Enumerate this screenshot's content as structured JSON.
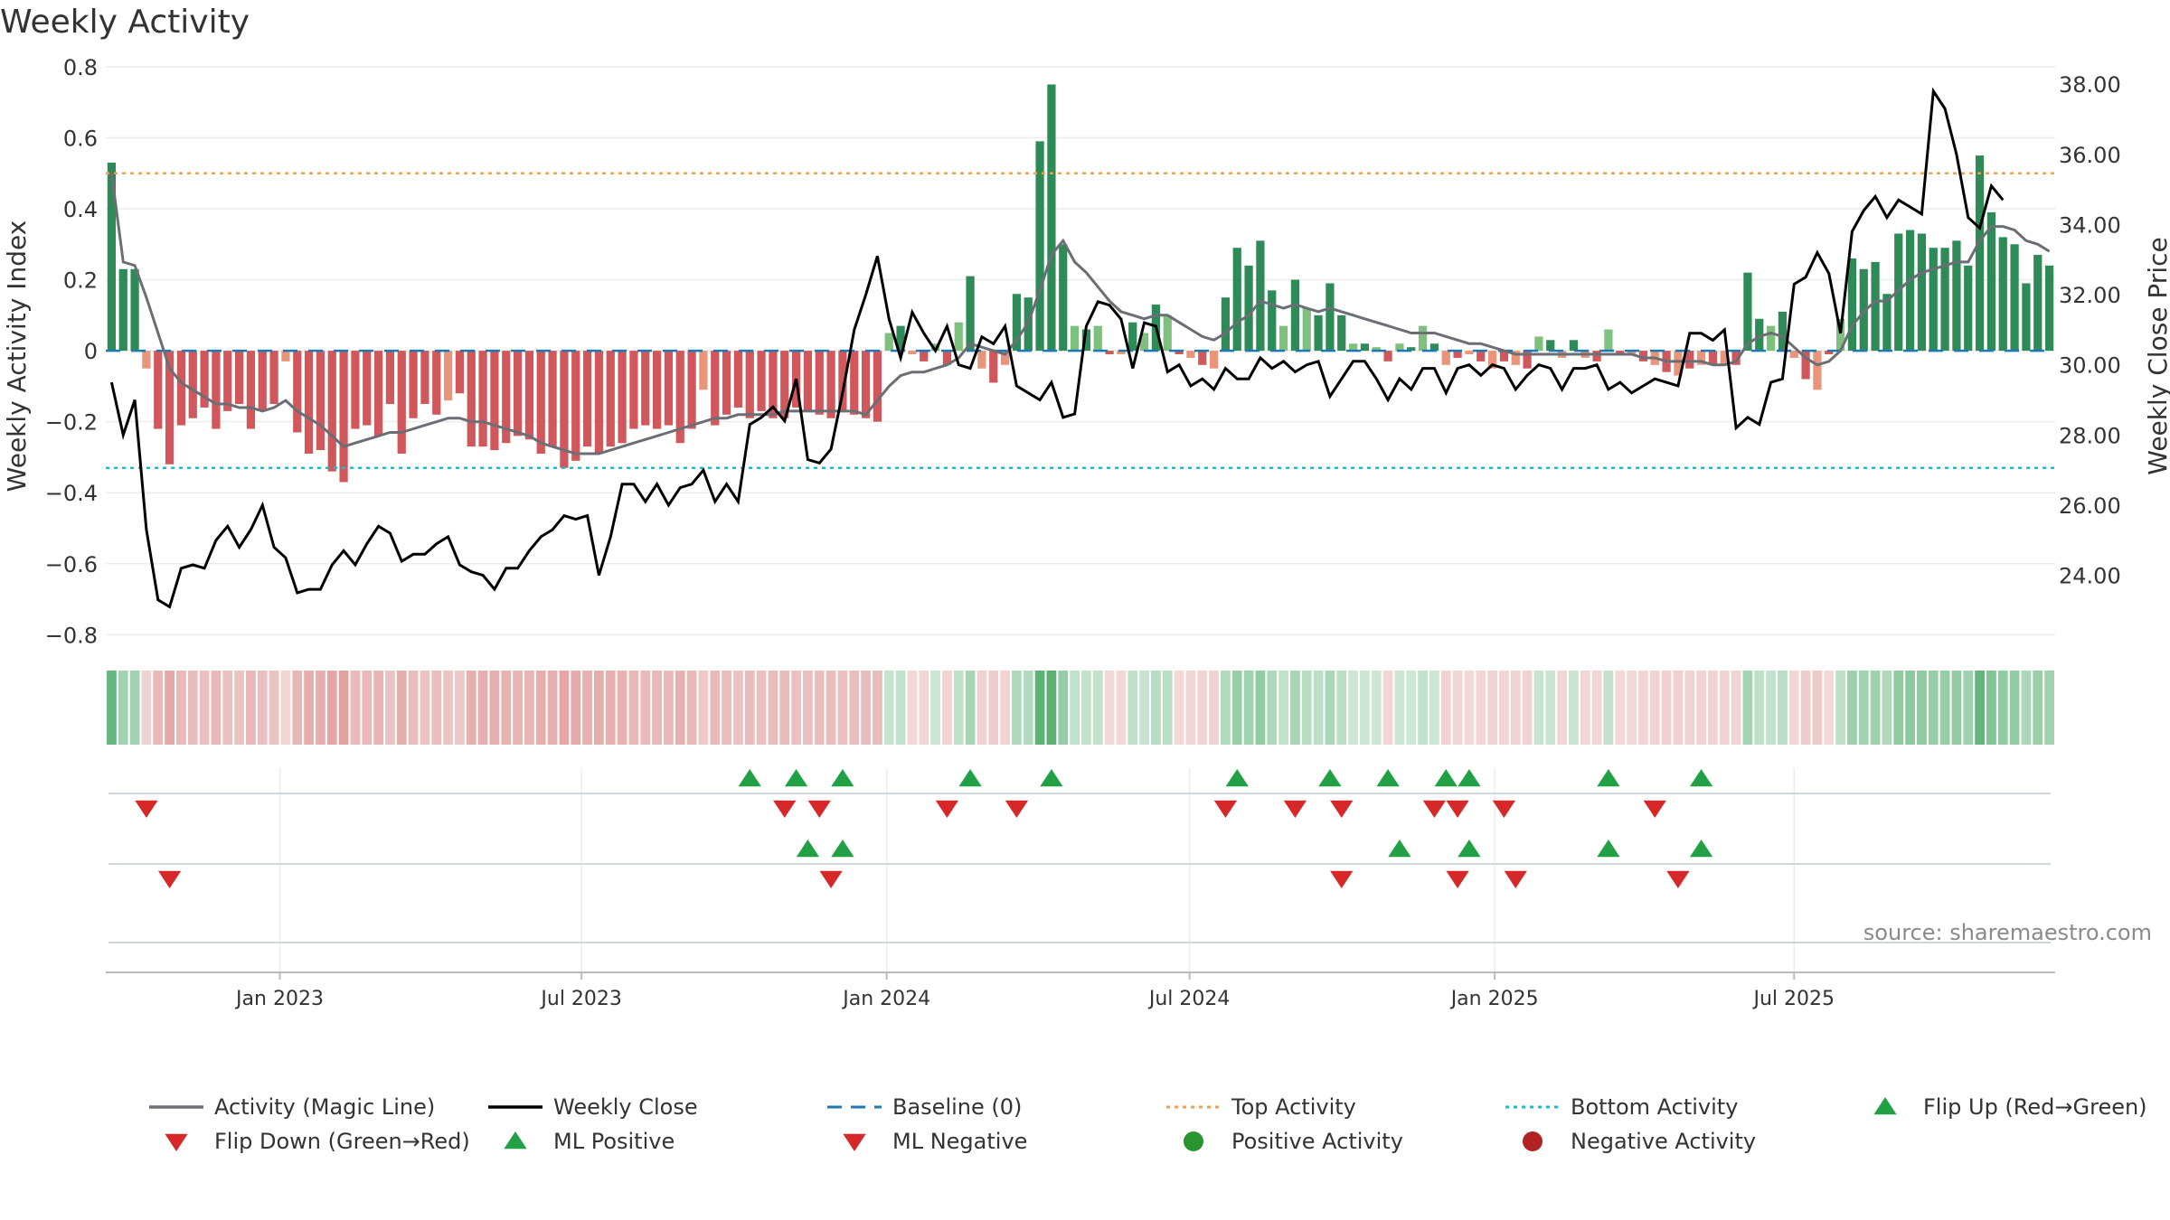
{
  "chart_data": {
    "type": "bar",
    "title": "Weekly Activity",
    "ylabel": "Weekly Activity Index",
    "y2label": "Weekly Close Price",
    "ylim": [
      -0.85,
      0.82
    ],
    "y2lim": [
      21.8,
      38.7
    ],
    "y_ticks": [
      0.8,
      0.6,
      0.4,
      0.2,
      0,
      -0.2,
      -0.4,
      -0.6,
      -0.8
    ],
    "y_tick_labels": [
      "0.8",
      "0.6",
      "0.4",
      "0.2",
      "0",
      "−0.2",
      "−0.4",
      "−0.6",
      "−0.8"
    ],
    "y2_ticks": [
      38,
      36,
      34,
      32,
      30,
      28,
      26,
      24
    ],
    "y2_tick_labels": [
      "38.00",
      "36.00",
      "34.00",
      "32.00",
      "30.00",
      "28.00",
      "26.00",
      "24.00"
    ],
    "x_ticks": [
      {
        "label": "Jan 2023",
        "week": 15
      },
      {
        "label": "Jul 2023",
        "week": 41
      },
      {
        "label": "Jan 2024",
        "week": 67.3
      },
      {
        "label": "Jul 2024",
        "week": 93.4
      },
      {
        "label": "Jan 2025",
        "week": 119.7
      },
      {
        "label": "Jul 2025",
        "week": 145.5
      }
    ],
    "top_activity": 0.5,
    "bottom_activity": -0.33,
    "baseline": 0,
    "activity": [
      0.53,
      0.23,
      0.23,
      -0.05,
      -0.22,
      -0.32,
      -0.21,
      -0.19,
      -0.16,
      -0.22,
      -0.17,
      -0.15,
      -0.22,
      -0.17,
      -0.15,
      -0.03,
      -0.23,
      -0.29,
      -0.28,
      -0.34,
      -0.37,
      -0.22,
      -0.21,
      -0.24,
      -0.15,
      -0.29,
      -0.19,
      -0.15,
      -0.18,
      -0.14,
      -0.12,
      -0.27,
      -0.27,
      -0.28,
      -0.26,
      -0.24,
      -0.25,
      -0.29,
      -0.27,
      -0.33,
      -0.31,
      -0.27,
      -0.29,
      -0.27,
      -0.26,
      -0.22,
      -0.21,
      -0.22,
      -0.21,
      -0.26,
      -0.22,
      -0.11,
      -0.21,
      -0.18,
      -0.16,
      -0.19,
      -0.17,
      -0.19,
      -0.19,
      -0.16,
      -0.17,
      -0.18,
      -0.19,
      -0.17,
      -0.18,
      -0.19,
      -0.2,
      0.05,
      0.07,
      -0.01,
      -0.03,
      0.02,
      -0.04,
      0.08,
      0.21,
      -0.05,
      -0.09,
      -0.04,
      0.16,
      0.15,
      0.59,
      0.75,
      0.3,
      0.07,
      0.06,
      0.07,
      -0.01,
      -0.01,
      0.08,
      0.05,
      0.13,
      0.1,
      -0.01,
      -0.02,
      -0.04,
      -0.05,
      0.15,
      0.29,
      0.24,
      0.31,
      0.17,
      0.07,
      0.2,
      0.12,
      0.1,
      0.19,
      0.1,
      0.02,
      0.02,
      0.01,
      -0.03,
      0.02,
      0.01,
      0.07,
      0.02,
      -0.04,
      -0.02,
      -0.01,
      -0.03,
      -0.05,
      -0.03,
      -0.04,
      -0.05,
      0.04,
      0.03,
      -0.02,
      0.03,
      -0.02,
      -0.03,
      0.06,
      -0.01,
      -0.01,
      -0.03,
      -0.04,
      -0.06,
      -0.07,
      -0.05,
      -0.04,
      -0.04,
      -0.04,
      -0.04,
      0.22,
      0.09,
      0.07,
      0.11,
      -0.02,
      -0.08,
      -0.11,
      -0.01,
      0.09,
      0.26,
      0.23,
      0.25,
      0.16,
      0.33,
      0.34,
      0.33,
      0.29,
      0.29,
      0.31,
      0.24,
      0.55,
      0.39,
      0.32,
      0.3,
      0.19,
      0.27,
      0.24
    ],
    "magic_line": [
      0.5,
      0.25,
      0.24,
      0.15,
      0.05,
      -0.05,
      -0.09,
      -0.11,
      -0.13,
      -0.15,
      -0.15,
      -0.16,
      -0.16,
      -0.17,
      -0.16,
      -0.14,
      -0.17,
      -0.19,
      -0.21,
      -0.24,
      -0.27,
      -0.26,
      -0.25,
      -0.24,
      -0.23,
      -0.23,
      -0.22,
      -0.21,
      -0.2,
      -0.19,
      -0.19,
      -0.2,
      -0.2,
      -0.21,
      -0.22,
      -0.23,
      -0.24,
      -0.26,
      -0.27,
      -0.28,
      -0.29,
      -0.29,
      -0.29,
      -0.28,
      -0.27,
      -0.26,
      -0.25,
      -0.24,
      -0.23,
      -0.22,
      -0.21,
      -0.2,
      -0.19,
      -0.19,
      -0.18,
      -0.18,
      -0.18,
      -0.18,
      -0.17,
      -0.17,
      -0.17,
      -0.17,
      -0.17,
      -0.17,
      -0.17,
      -0.18,
      -0.14,
      -0.1,
      -0.07,
      -0.06,
      -0.06,
      -0.05,
      -0.04,
      -0.02,
      0.02,
      0.01,
      0.0,
      -0.01,
      0.03,
      0.08,
      0.17,
      0.27,
      0.31,
      0.25,
      0.22,
      0.18,
      0.14,
      0.11,
      0.1,
      0.09,
      0.1,
      0.1,
      0.08,
      0.06,
      0.04,
      0.03,
      0.05,
      0.08,
      0.1,
      0.14,
      0.13,
      0.12,
      0.13,
      0.12,
      0.11,
      0.12,
      0.11,
      0.1,
      0.09,
      0.08,
      0.07,
      0.06,
      0.05,
      0.05,
      0.05,
      0.04,
      0.03,
      0.02,
      0.02,
      0.01,
      0.0,
      -0.01,
      -0.01,
      -0.01,
      -0.01,
      -0.01,
      -0.01,
      -0.01,
      -0.01,
      -0.01,
      -0.01,
      -0.01,
      -0.02,
      -0.02,
      -0.03,
      -0.03,
      -0.03,
      -0.03,
      -0.04,
      -0.04,
      -0.03,
      0.02,
      0.04,
      0.05,
      0.04,
      0.01,
      -0.02,
      -0.04,
      -0.03,
      0.0,
      0.07,
      0.11,
      0.14,
      0.14,
      0.17,
      0.2,
      0.22,
      0.23,
      0.24,
      0.25,
      0.25,
      0.31,
      0.35,
      0.35,
      0.34,
      0.31,
      0.3,
      0.28
    ],
    "weekly_close": [
      29.5,
      28,
      29,
      25.3,
      23.3,
      23.1,
      24.2,
      24.3,
      24.2,
      25,
      25.4,
      24.8,
      25.3,
      26,
      24.8,
      24.5,
      23.5,
      23.6,
      23.6,
      24.3,
      24.7,
      24.3,
      24.9,
      25.4,
      25.2,
      24.4,
      24.6,
      24.6,
      24.9,
      25.1,
      24.3,
      24.1,
      24,
      23.6,
      24.2,
      24.2,
      24.7,
      25.1,
      25.3,
      25.7,
      25.6,
      25.7,
      24,
      25.1,
      26.6,
      26.6,
      26.1,
      26.6,
      26,
      26.5,
      26.6,
      27,
      26.1,
      26.6,
      26.1,
      28.3,
      28.5,
      28.8,
      28.4,
      29.6,
      27.3,
      27.2,
      27.6,
      29.2,
      31,
      32,
      33.1,
      31.3,
      30.2,
      31.5,
      30.9,
      30.4,
      31.1,
      30,
      29.9,
      30.8,
      30.6,
      31.1,
      29.4,
      29.2,
      29,
      29.5,
      28.5,
      28.6,
      31.1,
      31.8,
      31.7,
      31.3,
      29.9,
      31.2,
      31.1,
      29.8,
      30,
      29.4,
      29.6,
      29.3,
      29.9,
      29.6,
      29.6,
      30.2,
      29.9,
      30.1,
      29.8,
      30,
      30.1,
      29.1,
      29.6,
      30.1,
      30.1,
      29.6,
      29,
      29.6,
      29.3,
      29.9,
      29.9,
      29.2,
      29.9,
      30,
      29.7,
      30,
      29.9,
      29.3,
      29.7,
      30,
      29.9,
      29.3,
      29.9,
      29.9,
      30,
      29.3,
      29.5,
      29.2,
      29.4,
      29.6,
      29.5,
      29.4,
      30.9,
      30.9,
      30.7,
      31,
      28.2,
      28.5,
      28.3,
      29.5,
      29.6,
      32.3,
      32.5,
      33.2,
      32.6,
      30.9,
      33.8,
      34.4,
      34.8,
      34.2,
      34.7,
      34.5,
      34.3,
      37.8,
      37.3,
      36,
      34.2,
      33.9,
      35.1,
      34.7
    ],
    "strip_series": "activity",
    "flip_up_weeks": [
      55,
      59,
      63,
      74,
      81,
      97,
      105,
      110,
      115,
      117,
      129,
      137
    ],
    "flip_down_weeks": [
      3,
      58,
      61,
      72,
      78,
      96,
      102,
      106,
      114,
      116,
      120,
      133
    ],
    "ml_positive_weeks": [
      60,
      63,
      111,
      117,
      129,
      137
    ],
    "ml_negative_weeks": [
      5,
      62,
      106,
      116,
      121,
      135
    ],
    "positive_activity_weeks": [],
    "negative_activity_weeks": [],
    "source_label": "source: sharemaestro.com",
    "legend": [
      {
        "label": "Activity (Magic Line)",
        "symbol": "line",
        "color": "#6b6e75"
      },
      {
        "label": "Weekly Close",
        "symbol": "line",
        "color": "#000000"
      },
      {
        "label": "Baseline (0)",
        "symbol": "dash",
        "color": "#1f77b4"
      },
      {
        "label": "Top Activity",
        "symbol": "dot",
        "color": "#f0a050"
      },
      {
        "label": "Bottom Activity",
        "symbol": "dot",
        "color": "#17becf"
      },
      {
        "label": "Flip Up (Red→Green)",
        "symbol": "tri-up",
        "color": "#22a045"
      },
      {
        "label": "Flip Down (Green→Red)",
        "symbol": "tri-down",
        "color": "#d62828"
      },
      {
        "label": "ML Positive",
        "symbol": "tri-up",
        "color": "#22a045"
      },
      {
        "label": "ML Negative",
        "symbol": "tri-down",
        "color": "#d62828"
      },
      {
        "label": "Positive Activity",
        "symbol": "circle",
        "color": "#2a9430"
      },
      {
        "label": "Negative Activity",
        "symbol": "circle",
        "color": "#b22222"
      }
    ],
    "colors": {
      "pos_strong": "#2e8b57",
      "pos_weak": "#7fc07f",
      "neg_strong": "#d0585c",
      "neg_weak": "#e8957a",
      "magic_line": "#6b6e75",
      "close": "#000000",
      "baseline": "#1f77b4",
      "top": "#f0a050",
      "bottom": "#17becf"
    }
  }
}
